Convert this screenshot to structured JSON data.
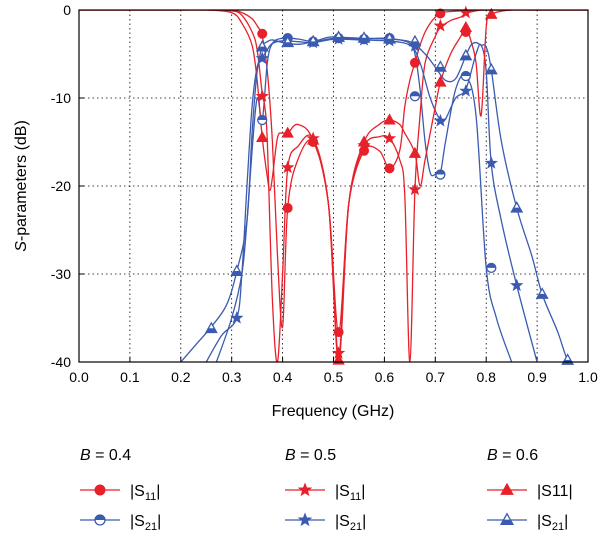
{
  "chart_data": {
    "type": "line",
    "xlabel": "Frequency (GHz)",
    "ylabel_prefix": "S",
    "ylabel_rest": "-parameters (dB)",
    "xlim": [
      0.0,
      1.0
    ],
    "ylim": [
      -40,
      0
    ],
    "xticks": [
      "0.0",
      "0.1",
      "0.2",
      "0.3",
      "0.4",
      "0.5",
      "0.6",
      "0.7",
      "0.8",
      "0.9",
      "1.0"
    ],
    "yticks": [
      "0",
      "-10",
      "-20",
      "-30",
      "-40"
    ],
    "grid": true,
    "legend_groups": [
      {
        "title_var": "B",
        "title_val": " = 0.4",
        "items": [
          {
            "label_pre": "|S",
            "label_sub": "11",
            "label_post": "|",
            "color": "#e8202a",
            "marker": "circle",
            "fill": "filled"
          },
          {
            "label_pre": "|S",
            "label_sub": "21",
            "label_post": "|",
            "color": "#3a5bb0",
            "marker": "circle",
            "fill": "half"
          }
        ]
      },
      {
        "title_var": "B",
        "title_val": " = 0.5",
        "items": [
          {
            "label_pre": "|S",
            "label_sub": "11",
            "label_post": "|",
            "color": "#e8202a",
            "marker": "star",
            "fill": "filled"
          },
          {
            "label_pre": "|S",
            "label_sub": "21",
            "label_post": "|",
            "color": "#3a5bb0",
            "marker": "star",
            "fill": "filled"
          }
        ]
      },
      {
        "title_var": "B",
        "title_val": " = 0.6",
        "items": [
          {
            "label_pre": "|S11|",
            "label_sub": "",
            "label_post": "",
            "color": "#e8202a",
            "marker": "triangle",
            "fill": "filled"
          },
          {
            "label_pre": "|S",
            "label_sub": "21",
            "label_post": "|",
            "color": "#3a5bb0",
            "marker": "triangle",
            "fill": "half"
          }
        ]
      }
    ],
    "series": [
      {
        "group": "B = 0.4",
        "param": "|S11|",
        "color": "#e8202a",
        "marker": "circle",
        "fill": "filled",
        "x": [
          0.0,
          0.05,
          0.1,
          0.15,
          0.2,
          0.25,
          0.3,
          0.32,
          0.34,
          0.35,
          0.36,
          0.37,
          0.38,
          0.39,
          0.4,
          0.41,
          0.43,
          0.46,
          0.49,
          0.51,
          0.53,
          0.56,
          0.59,
          0.61,
          0.63,
          0.64,
          0.65,
          0.66,
          0.67,
          0.68,
          0.69,
          0.7,
          0.71,
          0.75,
          0.8,
          0.9,
          1.0
        ],
        "y": [
          0,
          0,
          0,
          0,
          0,
          0,
          -0.05,
          -0.3,
          -1,
          -1.8,
          -3,
          -7,
          -15,
          -28,
          -36,
          -22.5,
          -17,
          -15,
          -22,
          -36.6,
          -22,
          -16,
          -16,
          -18,
          -16,
          -11,
          -8,
          -6,
          -4,
          -2.5,
          -1.5,
          -0.8,
          -0.3,
          -0.1,
          0,
          0,
          0
        ],
        "markers_x": [
          0.36,
          0.41,
          0.46,
          0.51,
          0.56,
          0.61,
          0.66,
          0.71,
          0.76
        ],
        "markers_y": [
          -2.7,
          -22.5,
          -15,
          -36.6,
          -16,
          -18,
          -6,
          -0.4,
          -2.5
        ]
      },
      {
        "group": "B = 0.4",
        "param": "|S21|",
        "color": "#3a5bb0",
        "marker": "circle",
        "fill": "half",
        "x": [
          0.27,
          0.3,
          0.32,
          0.33,
          0.34,
          0.35,
          0.36,
          0.37,
          0.38,
          0.4,
          0.43,
          0.46,
          0.49,
          0.51,
          0.55,
          0.6,
          0.63,
          0.65,
          0.66,
          0.67,
          0.68,
          0.69,
          0.7,
          0.71,
          0.72,
          0.74,
          0.76,
          0.78,
          0.8,
          0.82,
          0.85
        ],
        "y": [
          -40,
          -35,
          -30,
          -24,
          -16,
          -10,
          -12.5,
          -6,
          -3.8,
          -3.2,
          -3.3,
          -3.6,
          -3.3,
          -3.2,
          -3.3,
          -3.2,
          -3.4,
          -3.8,
          -5,
          -9,
          -15,
          -18.5,
          -18.7,
          -18.5,
          -15,
          -9,
          -7.5,
          -12,
          -29.3,
          -35,
          -40
        ],
        "markers_x": [
          0.36,
          0.41,
          0.46,
          0.51,
          0.56,
          0.61,
          0.66,
          0.71,
          0.76,
          0.81
        ],
        "markers_y": [
          -12.5,
          -3.2,
          -3.6,
          -3.2,
          -3.3,
          -3.2,
          -9.8,
          -18.7,
          -7.5,
          -29.3
        ]
      },
      {
        "group": "B = 0.5",
        "param": "|S11|",
        "color": "#e8202a",
        "marker": "star",
        "fill": "filled",
        "x": [
          0.0,
          0.05,
          0.1,
          0.15,
          0.2,
          0.25,
          0.3,
          0.32,
          0.34,
          0.35,
          0.36,
          0.365,
          0.37,
          0.38,
          0.39,
          0.4,
          0.41,
          0.43,
          0.46,
          0.49,
          0.51,
          0.53,
          0.56,
          0.59,
          0.61,
          0.63,
          0.64,
          0.65,
          0.66,
          0.67,
          0.68,
          0.7,
          0.71,
          0.73,
          0.75,
          0.76,
          0.78,
          0.8,
          0.9,
          1.0
        ],
        "y": [
          0,
          0,
          0,
          0,
          0,
          0,
          -0.1,
          -0.6,
          -2.5,
          -4.5,
          -9.5,
          -11,
          -15,
          -33,
          -40,
          -30,
          -18,
          -15.5,
          -14.6,
          -22,
          -39,
          -22,
          -15.5,
          -14.4,
          -14.6,
          -17,
          -21,
          -40,
          -20.4,
          -12,
          -6,
          -3,
          -2,
          -1.2,
          -0.8,
          -0.4,
          -0.1,
          0,
          0,
          0
        ],
        "markers_x": [
          0.36,
          0.41,
          0.46,
          0.51,
          0.56,
          0.61,
          0.66,
          0.71,
          0.76
        ],
        "markers_y": [
          -9.8,
          -17.9,
          -14.6,
          -39,
          -15.4,
          -14.6,
          -20.4,
          -1.8,
          -0.3
        ]
      },
      {
        "group": "B = 0.5",
        "param": "|S21|",
        "color": "#3a5bb0",
        "marker": "star",
        "fill": "filled",
        "x": [
          0.25,
          0.28,
          0.31,
          0.32,
          0.33,
          0.34,
          0.35,
          0.36,
          0.37,
          0.38,
          0.4,
          0.43,
          0.46,
          0.49,
          0.51,
          0.55,
          0.6,
          0.65,
          0.67,
          0.69,
          0.71,
          0.72,
          0.74,
          0.76,
          0.78,
          0.79,
          0.8,
          0.81,
          0.83,
          0.86,
          0.9
        ],
        "y": [
          -40,
          -37,
          -35,
          -30,
          -20,
          -11,
          -6.5,
          -5.5,
          -4.5,
          -3.8,
          -3.5,
          -3.6,
          -3.7,
          -3.4,
          -3.3,
          -3.4,
          -3.5,
          -4,
          -6,
          -10,
          -12.5,
          -12.4,
          -10,
          -9,
          -5,
          -4,
          -7,
          -17.5,
          -24,
          -31.3,
          -40
        ],
        "markers_x": [
          0.31,
          0.36,
          0.41,
          0.46,
          0.51,
          0.56,
          0.61,
          0.66,
          0.71,
          0.76,
          0.81,
          0.86
        ],
        "markers_y": [
          -35,
          -5.5,
          -3.4,
          -3.7,
          -3.3,
          -3.4,
          -3.5,
          -4.1,
          -12.6,
          -9.2,
          -17.4,
          -31.3
        ]
      },
      {
        "group": "B = 0.6",
        "param": "|S11|",
        "color": "#e8202a",
        "marker": "triangle",
        "fill": "filled",
        "x": [
          0.0,
          0.05,
          0.1,
          0.15,
          0.2,
          0.25,
          0.3,
          0.32,
          0.34,
          0.35,
          0.36,
          0.37,
          0.375,
          0.38,
          0.39,
          0.4,
          0.41,
          0.43,
          0.46,
          0.49,
          0.51,
          0.53,
          0.56,
          0.59,
          0.61,
          0.63,
          0.64,
          0.66,
          0.67,
          0.68,
          0.7,
          0.71,
          0.73,
          0.75,
          0.76,
          0.77,
          0.78,
          0.79,
          0.8,
          0.81,
          0.85,
          0.9,
          1.0
        ],
        "y": [
          0,
          0,
          0,
          0,
          0,
          0,
          -0.3,
          -1.5,
          -4,
          -8,
          -14.5,
          -19,
          -20.5,
          -19,
          -14.5,
          -14,
          -14,
          -13,
          -14.8,
          -22,
          -39.9,
          -22,
          -15,
          -13,
          -12.5,
          -13,
          -14,
          -16.3,
          -20,
          -17,
          -11,
          -8.2,
          -5,
          -3,
          -2,
          -3.5,
          -6,
          -12,
          -2,
          -0.5,
          0,
          0,
          0
        ],
        "markers_x": [
          0.36,
          0.41,
          0.46,
          0.51,
          0.56,
          0.61,
          0.66,
          0.71,
          0.76,
          0.81
        ],
        "markers_y": [
          -14.5,
          -14,
          -14.8,
          -39.8,
          -15,
          -12.5,
          -16.3,
          -8.2,
          -2,
          -0.5
        ]
      },
      {
        "group": "B = 0.6",
        "param": "|S21|",
        "color": "#3a5bb0",
        "marker": "triangle",
        "fill": "half",
        "x": [
          0.2,
          0.23,
          0.26,
          0.29,
          0.31,
          0.33,
          0.34,
          0.35,
          0.36,
          0.37,
          0.38,
          0.4,
          0.43,
          0.46,
          0.49,
          0.51,
          0.55,
          0.6,
          0.65,
          0.68,
          0.7,
          0.72,
          0.74,
          0.76,
          0.77,
          0.78,
          0.79,
          0.8,
          0.81,
          0.83,
          0.86,
          0.89,
          0.91,
          0.94,
          0.96,
          0.98
        ],
        "y": [
          -40,
          -38,
          -36,
          -33.5,
          -29.7,
          -24,
          -14,
          -7,
          -4.2,
          -3.6,
          -3.4,
          -3.7,
          -3.9,
          -3.6,
          -3.1,
          -3.1,
          -3.2,
          -3.3,
          -3.6,
          -5,
          -6.5,
          -8,
          -7.8,
          -5.2,
          -4,
          -3.7,
          -4,
          -4.2,
          -6.8,
          -15,
          -22.5,
          -28,
          -32.3,
          -36.5,
          -39.8,
          -41
        ],
        "markers_x": [
          0.26,
          0.31,
          0.36,
          0.41,
          0.46,
          0.51,
          0.56,
          0.61,
          0.66,
          0.71,
          0.76,
          0.81,
          0.86,
          0.91,
          0.96
        ],
        "markers_y": [
          -36.2,
          -29.7,
          -4.2,
          -3.7,
          -3.6,
          -3.1,
          -3.2,
          -3.3,
          -3.6,
          -6.5,
          -5.2,
          -6.8,
          -22.5,
          -32.3,
          -39.8
        ]
      }
    ]
  }
}
